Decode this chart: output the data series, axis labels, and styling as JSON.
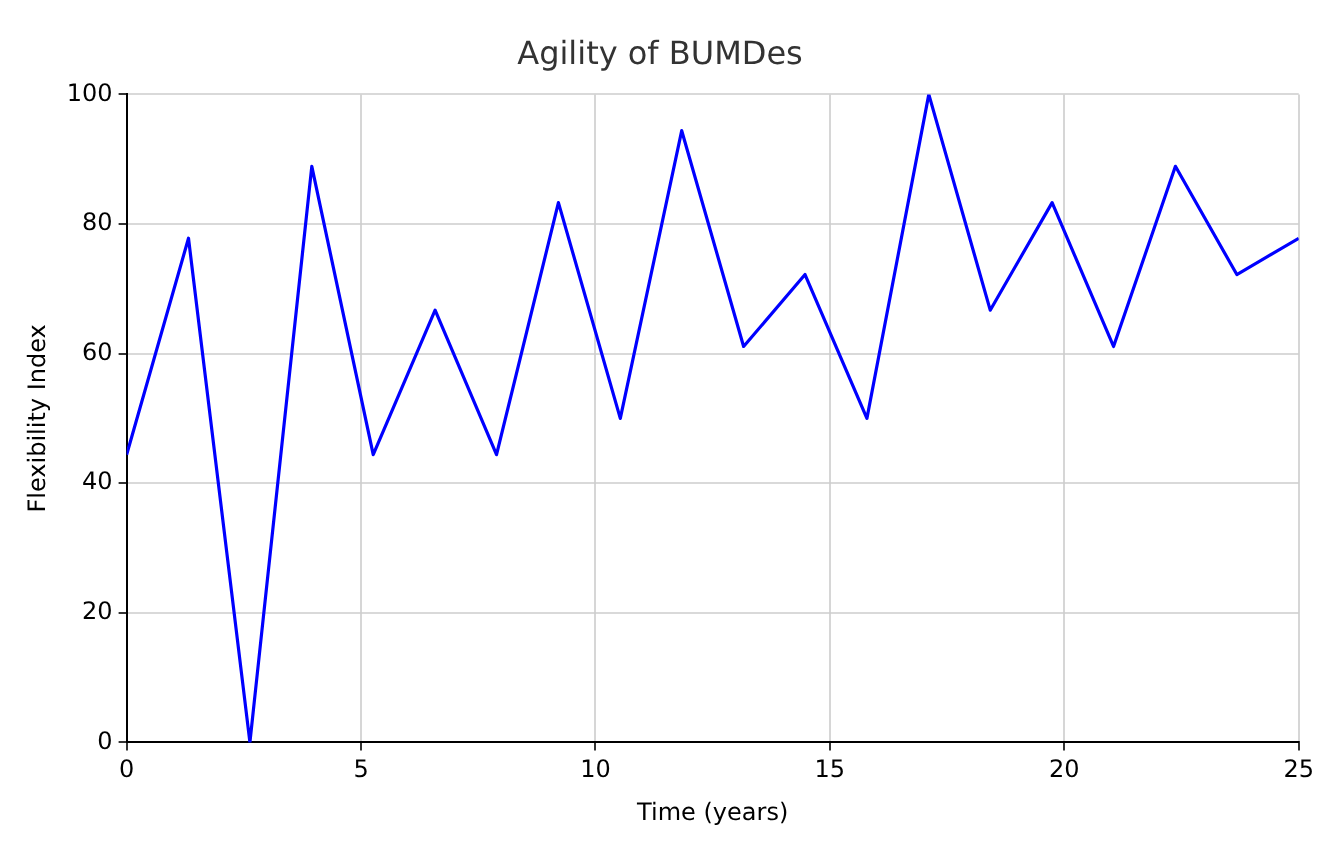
{
  "chart_data": {
    "type": "line",
    "title": "Agility of BUMDes",
    "xlabel": "Time (years)",
    "ylabel": "Flexibility Index",
    "x": [
      0,
      1.32,
      2.63,
      3.95,
      5.26,
      6.58,
      7.89,
      9.21,
      10.53,
      11.84,
      13.16,
      14.47,
      15.79,
      17.11,
      18.42,
      19.74,
      21.05,
      22.37,
      23.68,
      25
    ],
    "series": [
      {
        "color": "#0000ff",
        "values": [
          44.4,
          77.8,
          0,
          88.9,
          44.4,
          66.7,
          44.4,
          83.3,
          50,
          94.4,
          61.1,
          72.2,
          50,
          100,
          66.7,
          83.3,
          61.1,
          88.9,
          72.2,
          77.8
        ]
      }
    ],
    "xlim": [
      0,
      25
    ],
    "xticks": [
      0,
      5,
      10,
      15,
      20,
      25
    ],
    "ylim": [
      0,
      100
    ],
    "yticks": [
      0,
      20,
      40,
      60,
      80,
      100
    ],
    "grid": true,
    "legend": false,
    "marker": "none",
    "line_style": "solid"
  }
}
